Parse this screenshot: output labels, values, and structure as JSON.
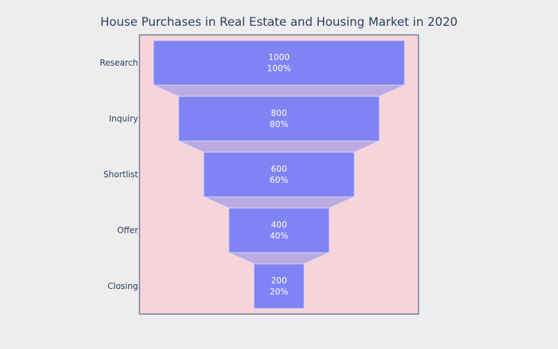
{
  "chart_data": {
    "type": "funnel",
    "title": "House Purchases in Real Estate and Housing Market in 2020",
    "categories": [
      "Research",
      "Inquiry",
      "Shortlist",
      "Offer",
      "Closing"
    ],
    "values": [
      1000,
      800,
      600,
      400,
      200
    ],
    "percent_labels": [
      "100%",
      "80%",
      "60%",
      "40%",
      "20%"
    ],
    "colors": {
      "page_background": "#ededed",
      "plot_background": "#f7d3da",
      "plot_border": "#8a93a8",
      "bar_fill": "#8083f3",
      "bar_stroke": "#d9dcf9",
      "connector_fill": "#bcaae3",
      "text": "#2a3f5f",
      "value_text": "#ffffff"
    }
  }
}
